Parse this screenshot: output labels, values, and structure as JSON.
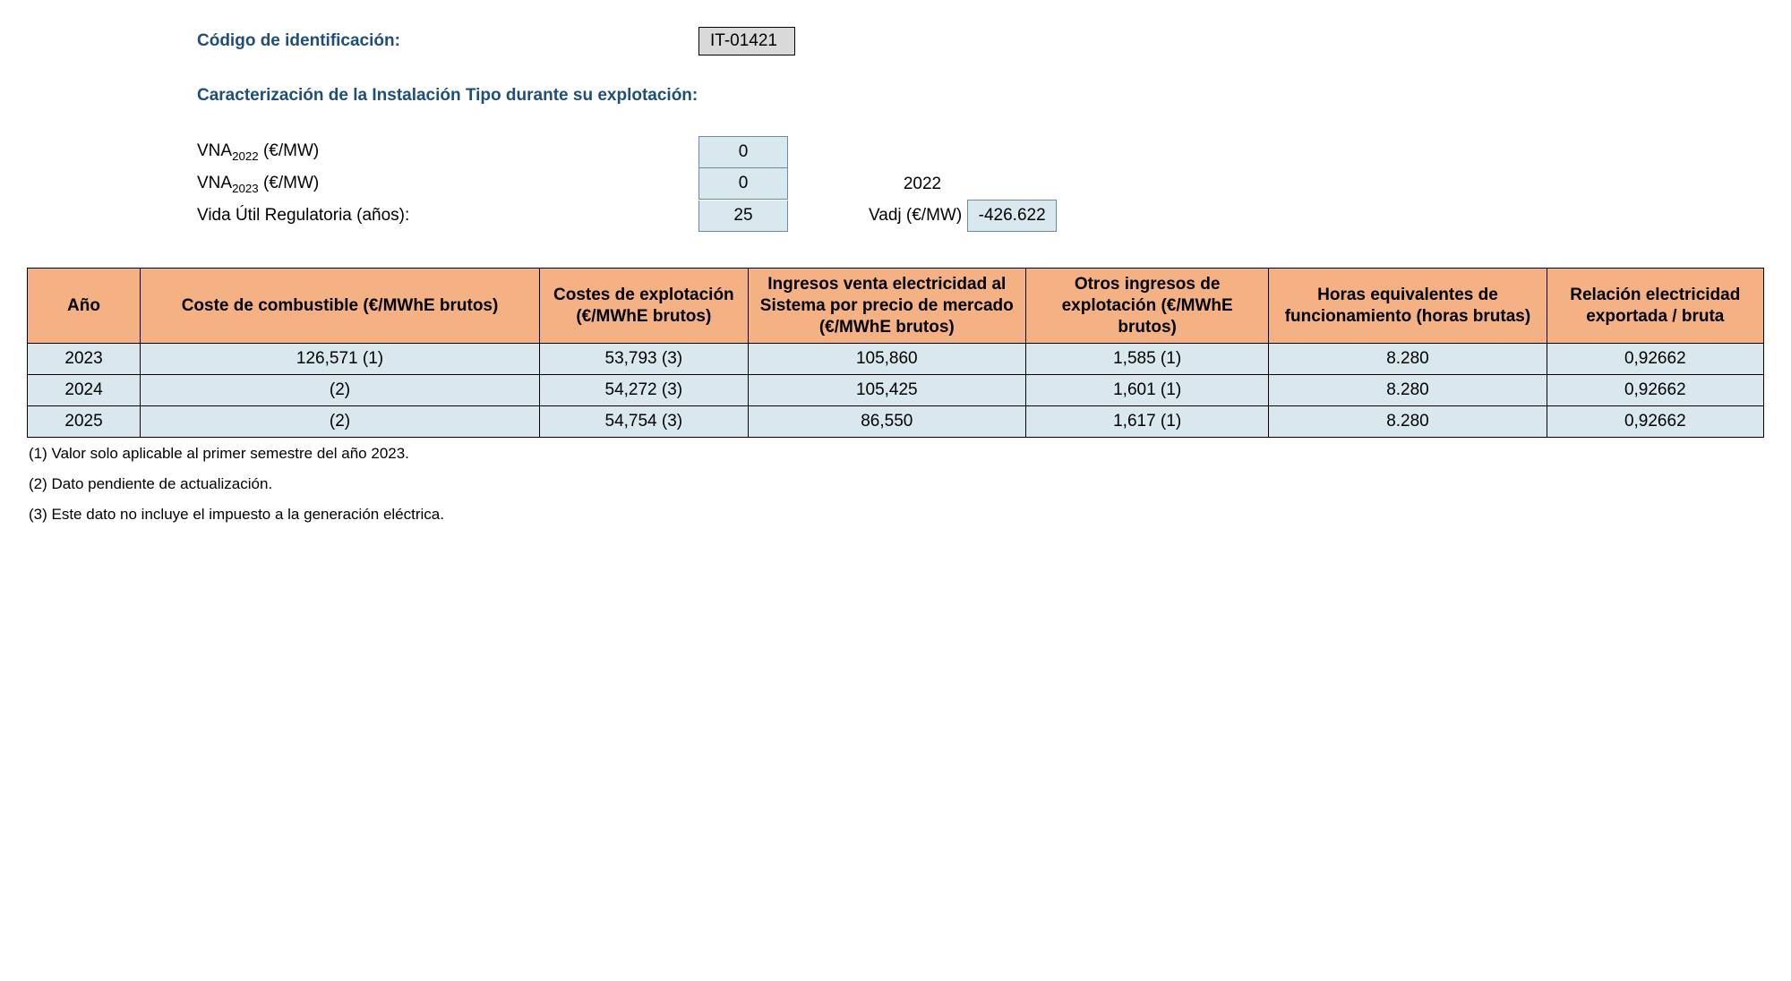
{
  "header": {
    "codigo_label": "Código de identificación:",
    "codigo_value": "IT-01421",
    "caract_label": "Caracterización de la Instalación Tipo durante su explotación:",
    "vna2022_label_pre": "VNA",
    "vna2022_label_sub": "2022",
    "vna2022_label_post": " (€/MW)",
    "vna2022_value": "0",
    "vna2023_label_pre": "VNA",
    "vna2023_label_sub": "2023",
    "vna2023_label_post": " (€/MW)",
    "vna2023_value": "0",
    "vna2023_year": "2022",
    "vida_label": "Vida Útil Regulatoria (años):",
    "vida_value": "25",
    "vadj_label": "Vadj (€/MW)",
    "vadj_value": "-426.622"
  },
  "table": {
    "columns": [
      "Año",
      "Coste de combustible (€/MWhE brutos)",
      "Costes de explotación (€/MWhE brutos)",
      "Ingresos venta electricidad al Sistema por precio de mercado (€/MWhE brutos)",
      "Otros ingresos de explotación (€/MWhE brutos)",
      "Horas equivalentes de funcionamiento (horas brutas)",
      "Relación electricidad exportada / bruta"
    ],
    "col_widths_pct": [
      6.5,
      23,
      12,
      16,
      14,
      16,
      12.5
    ],
    "header_bg": "#f4b183",
    "cell_bg": "#d9e7ef",
    "border_color": "#000000",
    "rows": [
      [
        "2023",
        "126,571 (1)",
        "53,793 (3)",
        "105,860",
        "1,585 (1)",
        "8.280",
        "0,92662"
      ],
      [
        "2024",
        "(2)",
        "54,272 (3)",
        "105,425",
        "1,601 (1)",
        "8.280",
        "0,92662"
      ],
      [
        "2025",
        "(2)",
        "54,754 (3)",
        "86,550",
        "1,617 (1)",
        "8.280",
        "0,92662"
      ]
    ]
  },
  "footnotes": {
    "n1": "(1) Valor solo aplicable al primer semestre del año 2023.",
    "n2": "(2) Dato pendiente de actualización.",
    "n3": "(3) Este dato no incluye el impuesto a la generación eléctrica."
  },
  "colors": {
    "heading": "#1f4e79",
    "code_box_bg": "#d9d9d9",
    "value_box_bg": "#d9e7ef",
    "value_box_border": "#6b8ca3"
  }
}
